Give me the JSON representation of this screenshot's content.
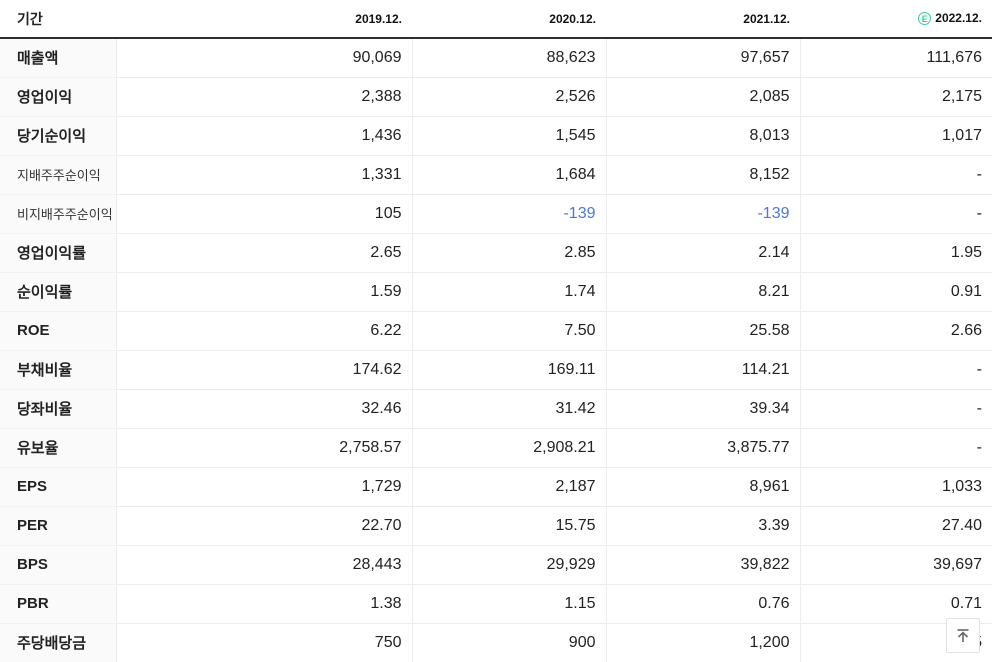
{
  "table": {
    "period_label": "기간",
    "columns": [
      "2019.12.",
      "2020.12.",
      "2021.12.",
      "2022.12."
    ],
    "estimate_badge": "E",
    "rows": [
      {
        "label": "매출액",
        "sub": false,
        "values": [
          "90,069",
          "88,623",
          "97,657",
          "111,676"
        ]
      },
      {
        "label": "영업이익",
        "sub": false,
        "values": [
          "2,388",
          "2,526",
          "2,085",
          "2,175"
        ]
      },
      {
        "label": "당기순이익",
        "sub": false,
        "values": [
          "1,436",
          "1,545",
          "8,013",
          "1,017"
        ]
      },
      {
        "label": "지배주주순이익",
        "sub": true,
        "values": [
          "1,331",
          "1,684",
          "8,152",
          "-"
        ]
      },
      {
        "label": "비지배주주순이익",
        "sub": true,
        "values": [
          "105",
          "-139",
          "-139",
          "-"
        ]
      },
      {
        "label": "영업이익률",
        "sub": false,
        "values": [
          "2.65",
          "2.85",
          "2.14",
          "1.95"
        ]
      },
      {
        "label": "순이익률",
        "sub": false,
        "values": [
          "1.59",
          "1.74",
          "8.21",
          "0.91"
        ]
      },
      {
        "label": "ROE",
        "sub": false,
        "values": [
          "6.22",
          "7.50",
          "25.58",
          "2.66"
        ]
      },
      {
        "label": "부채비율",
        "sub": false,
        "values": [
          "174.62",
          "169.11",
          "114.21",
          "-"
        ]
      },
      {
        "label": "당좌비율",
        "sub": false,
        "values": [
          "32.46",
          "31.42",
          "39.34",
          "-"
        ]
      },
      {
        "label": "유보율",
        "sub": false,
        "values": [
          "2,758.57",
          "2,908.21",
          "3,875.77",
          "-"
        ]
      },
      {
        "label": "EPS",
        "sub": false,
        "values": [
          "1,729",
          "2,187",
          "8,961",
          "1,033"
        ]
      },
      {
        "label": "PER",
        "sub": false,
        "values": [
          "22.70",
          "15.75",
          "3.39",
          "27.40"
        ]
      },
      {
        "label": "BPS",
        "sub": false,
        "values": [
          "28,443",
          "29,929",
          "39,822",
          "39,697"
        ]
      },
      {
        "label": "PBR",
        "sub": false,
        "values": [
          "1.38",
          "1.15",
          "0.76",
          "0.71"
        ]
      },
      {
        "label": "주당배당금",
        "sub": false,
        "values": [
          "750",
          "900",
          "1,200",
          "5"
        ]
      }
    ]
  },
  "colors": {
    "negative_value": "#4a78d8",
    "estimate_badge": "#3fc8a0",
    "header_rule": "#2f2f2f"
  }
}
